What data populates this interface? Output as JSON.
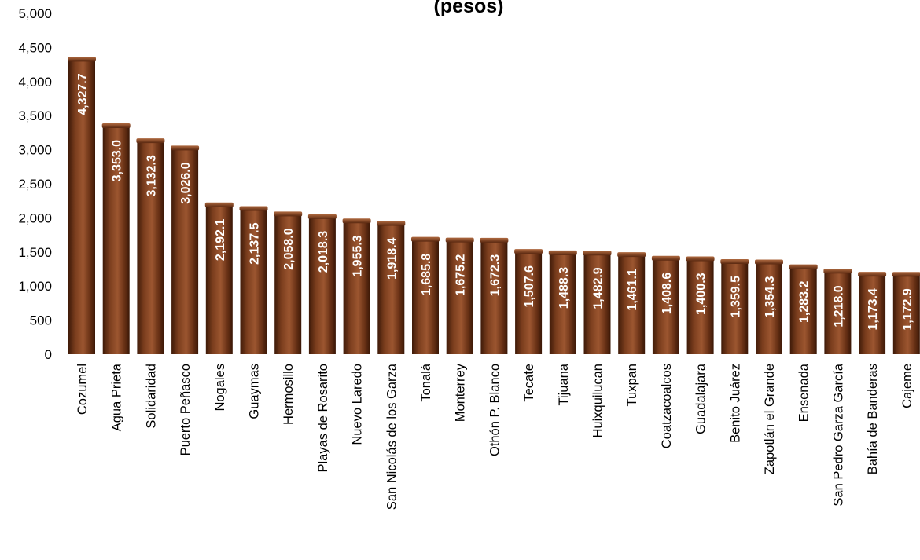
{
  "chart_data": {
    "type": "bar",
    "title": "(pesos)",
    "xlabel": "",
    "ylabel": "",
    "ylim": [
      0,
      5000
    ],
    "yticks": [
      "0",
      "500",
      "1,000",
      "1,500",
      "2,000",
      "2,500",
      "3,000",
      "3,500",
      "4,000",
      "4,500",
      "5,000"
    ],
    "grid": false,
    "legend": "none",
    "bar_color": "#6b3419",
    "categories": [
      "Cozumel",
      "Agua Prieta",
      "Solidaridad",
      "Puerto Peñasco",
      "Nogales",
      "Guaymas",
      "Hermosillo",
      "Playas de Rosarito",
      "Nuevo Laredo",
      "San Nicolás de los Garza",
      "Tonalá",
      "Monterrey",
      "Othón P. Blanco",
      "Tecate",
      "Tijuana",
      "Huixquilucan",
      "Tuxpan",
      "Coatzacoalcos",
      "Guadalajara",
      "Benito Juárez",
      "Zapotlán el Grande",
      "Ensenada",
      "San Pedro Garza García",
      "Bahía de Banderas",
      "Cajeme"
    ],
    "values": [
      4327.7,
      3353.0,
      3132.3,
      3026.0,
      2192.1,
      2137.5,
      2058.0,
      2018.3,
      1955.3,
      1918.4,
      1685.8,
      1675.2,
      1672.3,
      1507.6,
      1488.3,
      1482.9,
      1461.1,
      1408.6,
      1400.3,
      1359.5,
      1354.3,
      1283.2,
      1218.0,
      1173.4,
      1172.9
    ],
    "data_labels": [
      "4,327.7",
      "3,353.0",
      "3,132.3",
      "3,026.0",
      "2,192.1",
      "2,137.5",
      "2,058.0",
      "2,018.3",
      "1,955.3",
      "1,918.4",
      "1,685.8",
      "1,675.2",
      "1,672.3",
      "1,507.6",
      "1,488.3",
      "1,482.9",
      "1,461.1",
      "1,408.6",
      "1,400.3",
      "1,359.5",
      "1,354.3",
      "1,283.2",
      "1,218.0",
      "1,173.4",
      "1,172.9"
    ]
  }
}
